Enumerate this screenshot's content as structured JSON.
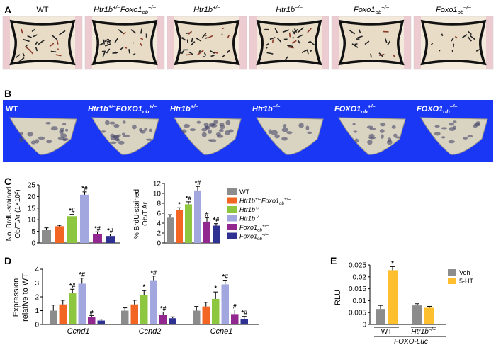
{
  "panel_letters": [
    "A",
    "B",
    "C",
    "D",
    "E"
  ],
  "genotypes": [
    {
      "base": "WT",
      "sup": "",
      "sub": "",
      "tail": ""
    },
    {
      "base": "Htr1b",
      "sup": "+/–",
      "sub": "",
      "tail": "Foxo1",
      "tail_sub": "ob",
      "tail_sup": "+/–"
    },
    {
      "base": "Htr1b",
      "sup": "+/–",
      "sub": "",
      "tail": ""
    },
    {
      "base": "Htr1b",
      "sup": "–/–",
      "sub": "",
      "tail": ""
    },
    {
      "base": "Foxo1",
      "sup": "+/–",
      "sub": "ob",
      "tail": ""
    },
    {
      "base": "Foxo1",
      "sup": "–/–",
      "sub": "ob",
      "tail": ""
    }
  ],
  "genotypes_b": [
    {
      "base": "WT",
      "sup": "",
      "sub": "",
      "tail": ""
    },
    {
      "base": "Htr1b",
      "sup": "+/–",
      "sub": "",
      "tail": "FOXO1",
      "tail_sub": "ob",
      "tail_sup": "+/–"
    },
    {
      "base": "Htr1b",
      "sup": "+/–",
      "sub": "",
      "tail": ""
    },
    {
      "base": "Htr1b",
      "sup": "–/–",
      "sub": "",
      "tail": ""
    },
    {
      "base": "FOXO1",
      "sup": "+/–",
      "sub": "ob",
      "tail": ""
    },
    {
      "base": "FOXO1",
      "sup": "–/–",
      "sub": "ob",
      "tail": ""
    }
  ],
  "colors": {
    "WT": "#8c8c8c",
    "double": "#f26522",
    "htr_het": "#8dc63f",
    "htr_ko": "#a3a7e0",
    "foxo_het": "#92278f",
    "foxo_ko": "#2e3192",
    "panelB_bg": "#1a37f5",
    "veh": "#8c8c8c",
    "ht5": "#fdbf2d"
  },
  "legend": [
    {
      "base": "WT",
      "sup": "",
      "sub": "",
      "tail": "",
      "color": "#8c8c8c"
    },
    {
      "base": "Htr1b",
      "sup": "+/–",
      "sub": "",
      "tail": "Foxo1",
      "tail_sub": "ob",
      "tail_sup": "+/–",
      "color": "#f26522"
    },
    {
      "base": "Htr1b",
      "sup": "+/–",
      "sub": "",
      "tail": "",
      "color": "#8dc63f"
    },
    {
      "base": "Htr1b",
      "sup": "–/–",
      "sub": "",
      "tail": "",
      "color": "#a3a7e0"
    },
    {
      "base": "Foxo1",
      "sup": "+/–",
      "sub": "ob",
      "tail": "",
      "color": "#92278f"
    },
    {
      "base": "Foxo1",
      "sup": "–/–",
      "sub": "ob",
      "tail": "",
      "color": "#2e3192"
    }
  ],
  "chart_data": [
    {
      "id": "C-left",
      "type": "bar",
      "ylabel_lines": [
        "No. BrdU-stained",
        "Ob/T.Ar (1×10²)"
      ],
      "ylim": [
        0,
        25
      ],
      "yticks": [
        0,
        5,
        10,
        15,
        20,
        25
      ],
      "values": [
        5.5,
        7.2,
        11.5,
        20.8,
        3.8,
        3.0
      ],
      "errors": [
        1.0,
        0.4,
        0.8,
        1.2,
        1.0,
        0.8
      ],
      "marks": [
        "",
        "",
        "*#",
        "*#",
        "*#",
        "*#"
      ]
    },
    {
      "id": "C-right",
      "type": "bar",
      "ylabel_lines": [
        "% BrdU-stained",
        "Ob/T.Ar"
      ],
      "ylim": [
        0,
        12
      ],
      "yticks": [
        0,
        2,
        4,
        6,
        8,
        10,
        12
      ],
      "values": [
        5.1,
        6.6,
        7.8,
        10.6,
        4.3,
        3.5
      ],
      "errors": [
        0.6,
        0.5,
        0.5,
        0.8,
        0.8,
        0.4
      ],
      "marks": [
        "",
        "*",
        "*#",
        "*#",
        "#",
        "*#"
      ]
    },
    {
      "id": "D",
      "type": "bar",
      "ylabel_lines": [
        "Expression",
        "relative to WT"
      ],
      "ylim": [
        0,
        4
      ],
      "yticks": [
        0,
        1,
        2,
        3,
        4
      ],
      "groups": [
        {
          "label": "Ccnd1",
          "values": [
            1.0,
            1.45,
            2.25,
            2.95,
            0.55,
            0.28
          ],
          "errors": [
            0.4,
            0.3,
            0.3,
            0.4,
            0.1,
            0.1
          ],
          "marks": [
            "",
            "",
            "*#",
            "*#",
            "#",
            ""
          ]
        },
        {
          "label": "Ccnd2",
          "values": [
            1.0,
            1.45,
            2.15,
            3.2,
            0.7,
            0.45
          ],
          "errors": [
            0.2,
            0.3,
            0.3,
            0.3,
            0.2,
            0.1
          ],
          "marks": [
            "",
            "",
            "*",
            "*#",
            "*#",
            ""
          ]
        },
        {
          "label": "Ccne1",
          "values": [
            1.0,
            1.3,
            1.85,
            2.9,
            0.75,
            0.38
          ],
          "errors": [
            0.3,
            0.3,
            0.5,
            0.3,
            0.3,
            0.2
          ],
          "marks": [
            "",
            "",
            "*",
            "*#",
            "#",
            "*#"
          ]
        }
      ]
    },
    {
      "id": "E",
      "type": "bar",
      "ylabel": "RLU",
      "ylim": [
        0,
        0.025
      ],
      "yticks": [
        "0",
        "0.005",
        "0.01",
        "0.015",
        "0.02",
        "0.025"
      ],
      "series_names": [
        "Veh",
        "5-HT"
      ],
      "groups": [
        {
          "label": "WT",
          "values": [
            0.0065,
            0.0228
          ],
          "errors": [
            0.0015,
            0.0015
          ],
          "marks": [
            "",
            "*"
          ]
        },
        {
          "label": "Htr1b",
          "label_sup": "–/–",
          "values": [
            0.008,
            0.007
          ],
          "errors": [
            0.0007,
            0.0006
          ],
          "marks": [
            "",
            ""
          ]
        }
      ],
      "xlabel": "FOXO-Luc"
    }
  ]
}
